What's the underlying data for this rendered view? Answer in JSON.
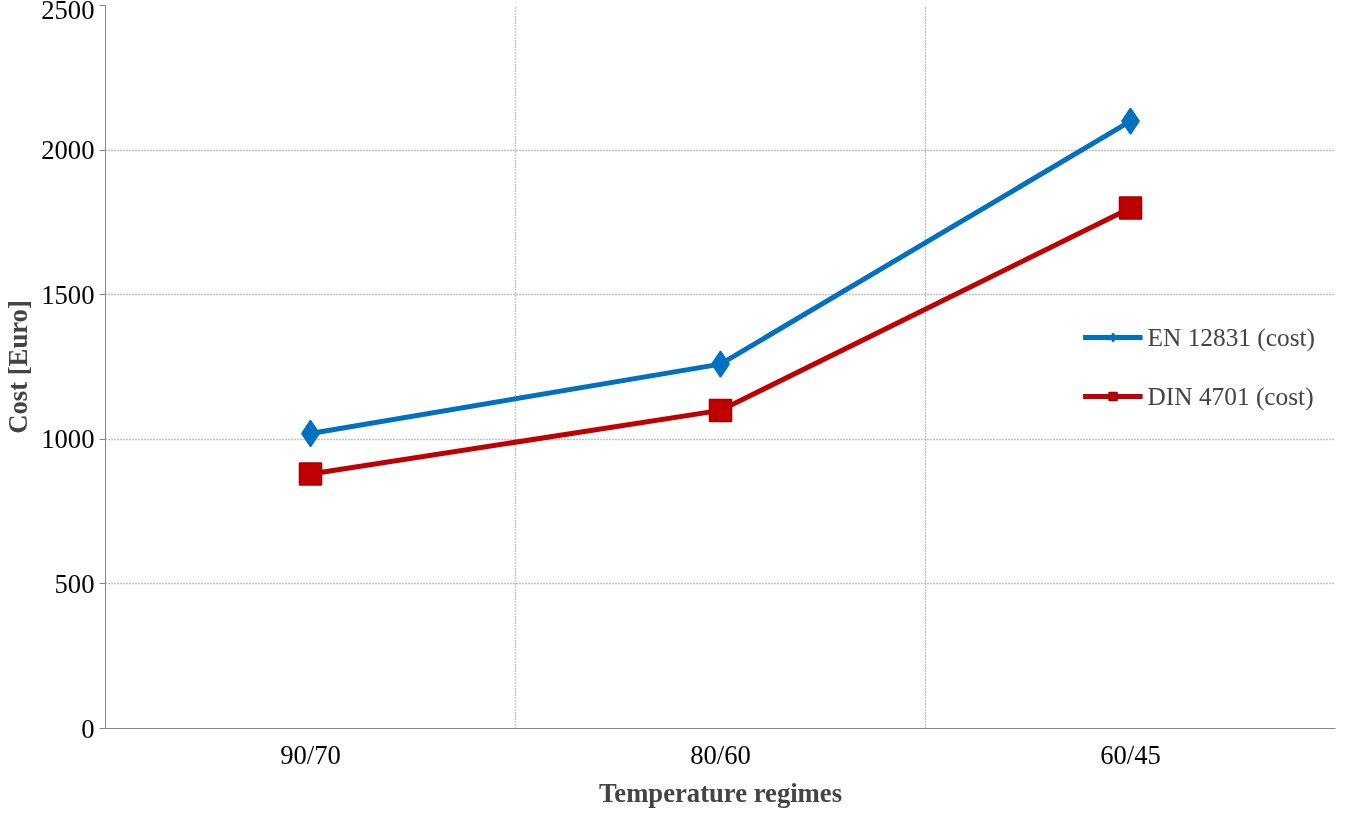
{
  "chart_data": {
    "type": "line",
    "xlabel": "Temperature regimes",
    "ylabel": "Cost [Euro]",
    "categories": [
      "90/70",
      "80/60",
      "60/45"
    ],
    "series": [
      {
        "name": "EN 12831 (cost)",
        "color": "#0070c0",
        "values": [
          1020,
          1260,
          2100
        ],
        "marker": "diamond"
      },
      {
        "name": "DIN 4701 (cost)",
        "color": "#c00000",
        "values": [
          880,
          1100,
          1800
        ],
        "marker": "square"
      }
    ],
    "ylim": [
      0,
      2500
    ],
    "yticks": [
      0,
      500,
      1000,
      1500,
      2000,
      2500
    ],
    "grid": true,
    "legend": "right",
    "line_style": "solid"
  }
}
